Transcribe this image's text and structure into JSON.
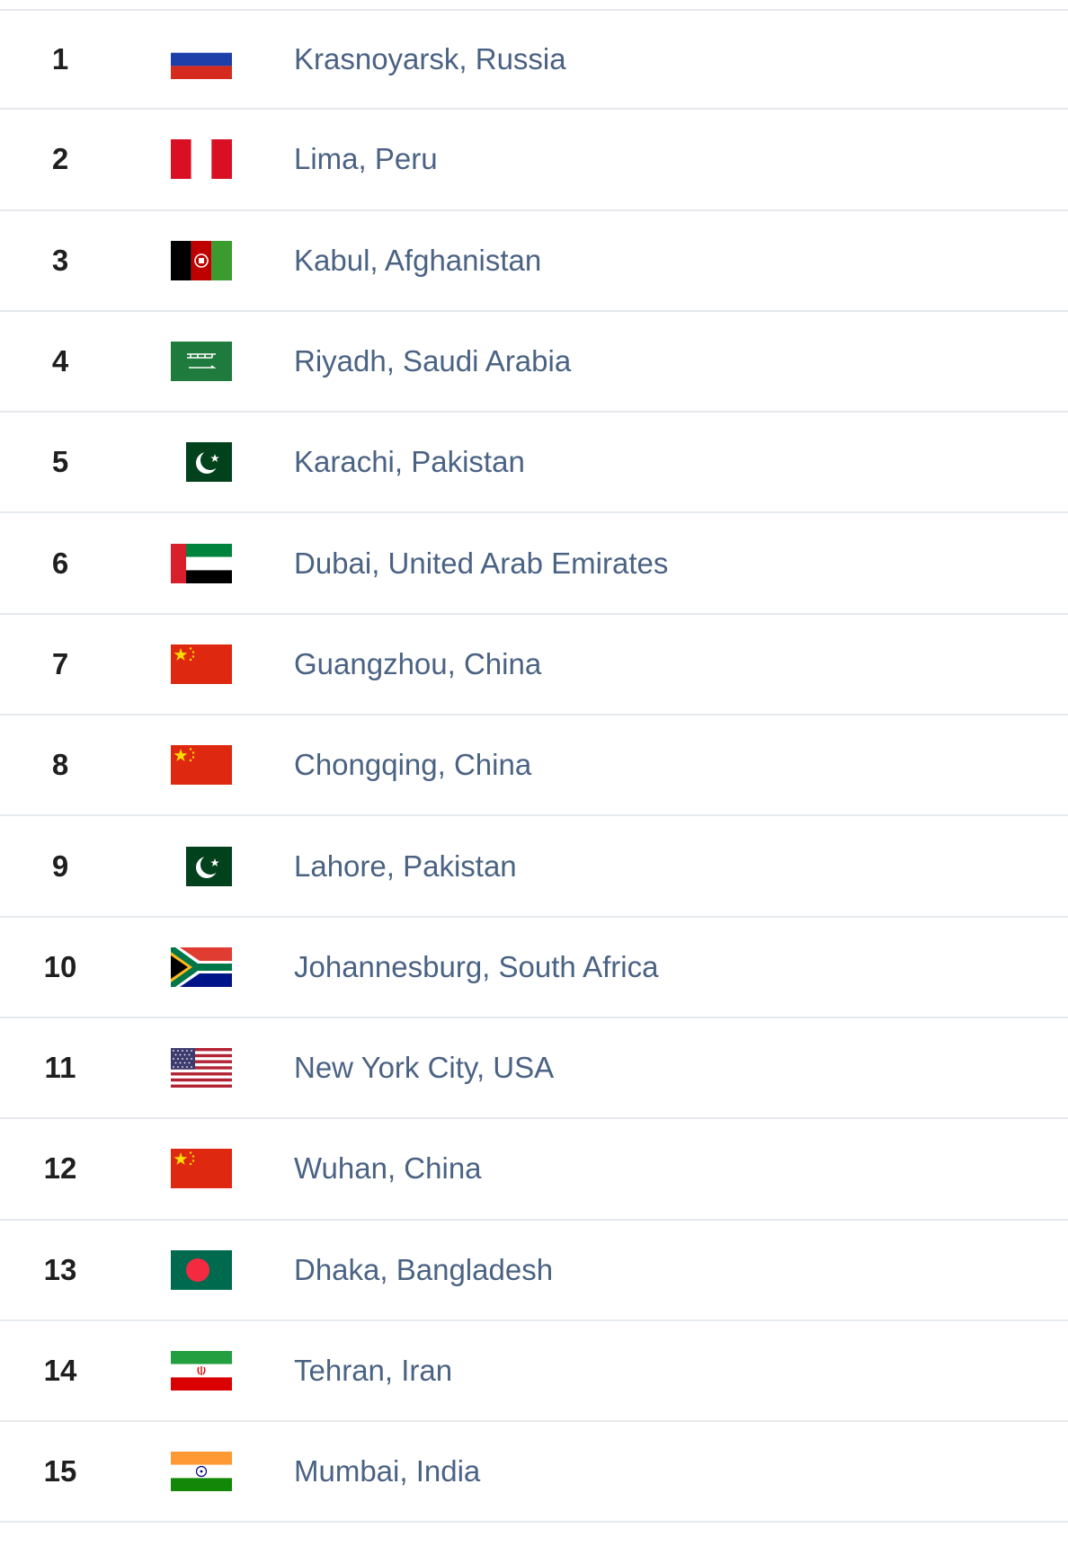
{
  "rows": [
    {
      "rank": "1",
      "city": "Krasnoyarsk, Russia",
      "flag": "russia-flag-icon"
    },
    {
      "rank": "2",
      "city": "Lima, Peru",
      "flag": "peru-flag-icon"
    },
    {
      "rank": "3",
      "city": "Kabul, Afghanistan",
      "flag": "afghanistan-flag-icon"
    },
    {
      "rank": "4",
      "city": "Riyadh, Saudi Arabia",
      "flag": "saudi-arabia-flag-icon"
    },
    {
      "rank": "5",
      "city": "Karachi, Pakistan",
      "flag": "pakistan-flag-icon"
    },
    {
      "rank": "6",
      "city": "Dubai, United Arab Emirates",
      "flag": "uae-flag-icon"
    },
    {
      "rank": "7",
      "city": "Guangzhou, China",
      "flag": "china-flag-icon"
    },
    {
      "rank": "8",
      "city": "Chongqing, China",
      "flag": "china-flag-icon"
    },
    {
      "rank": "9",
      "city": "Lahore, Pakistan",
      "flag": "pakistan-flag-icon"
    },
    {
      "rank": "10",
      "city": "Johannesburg, South Africa",
      "flag": "south-africa-flag-icon"
    },
    {
      "rank": "11",
      "city": "New York City, USA",
      "flag": "usa-flag-icon"
    },
    {
      "rank": "12",
      "city": "Wuhan, China",
      "flag": "china-flag-icon"
    },
    {
      "rank": "13",
      "city": "Dhaka, Bangladesh",
      "flag": "bangladesh-flag-icon"
    },
    {
      "rank": "14",
      "city": "Tehran, Iran",
      "flag": "iran-flag-icon"
    },
    {
      "rank": "15",
      "city": "Mumbai, India",
      "flag": "india-flag-icon"
    }
  ],
  "colors": {
    "link": "#4a6283",
    "rank": "#1f1f1f",
    "divider": "#e6e9ed"
  }
}
